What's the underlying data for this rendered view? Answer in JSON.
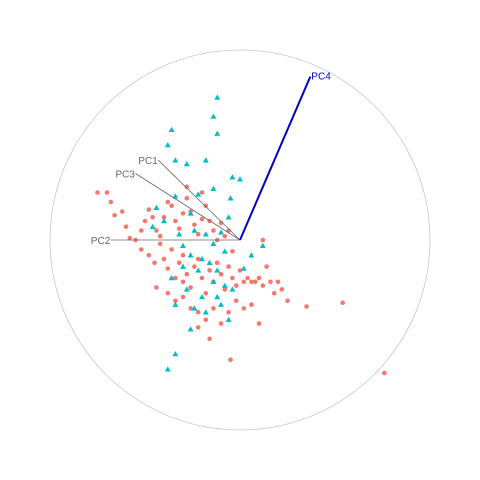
{
  "chart_data": {
    "type": "scatter",
    "title": "",
    "xlabel": "",
    "ylabel": "",
    "grid": false,
    "legend": "none",
    "xlim": [
      -1,
      1
    ],
    "ylim": [
      -1,
      1
    ],
    "unit_circle": true,
    "axes": [
      {
        "name": "PC1",
        "x": -0.43,
        "y": 0.42,
        "color": "#666666",
        "highlight": false
      },
      {
        "name": "PC2",
        "x": -0.68,
        "y": 0.0,
        "color": "#666666",
        "highlight": false
      },
      {
        "name": "PC3",
        "x": -0.55,
        "y": 0.35,
        "color": "#666666",
        "highlight": false
      },
      {
        "name": "PC4",
        "x": 0.37,
        "y": 0.86,
        "color": "#0000cc",
        "highlight": true
      }
    ],
    "series": [
      {
        "color": "#F8766D",
        "marker": "circle",
        "points": [
          [
            -0.75,
            0.25
          ],
          [
            -0.7,
            0.25
          ],
          [
            -0.68,
            0.2
          ],
          [
            -0.66,
            0.13
          ],
          [
            -0.62,
            0.15
          ],
          [
            -0.6,
            0.07
          ],
          [
            -0.58,
            0.01
          ],
          [
            -0.55,
            0.0
          ],
          [
            -0.52,
            0.05
          ],
          [
            -0.5,
            0.1
          ],
          [
            -0.48,
            0.16
          ],
          [
            -0.46,
            0.12
          ],
          [
            -0.44,
            0.05
          ],
          [
            -0.42,
            0.02
          ],
          [
            -0.4,
            0.12
          ],
          [
            -0.38,
            0.2
          ],
          [
            -0.36,
            0.18
          ],
          [
            -0.34,
            0.1
          ],
          [
            -0.32,
            0.06
          ],
          [
            -0.3,
            0.14
          ],
          [
            -0.28,
            0.22
          ],
          [
            -0.26,
            0.15
          ],
          [
            -0.24,
            0.08
          ],
          [
            -0.22,
            0.03
          ],
          [
            -0.2,
            0.11
          ],
          [
            -0.18,
            0.18
          ],
          [
            -0.16,
            0.1
          ],
          [
            -0.14,
            0.05
          ],
          [
            -0.12,
            0.0
          ],
          [
            -0.1,
            0.09
          ],
          [
            -0.52,
            -0.05
          ],
          [
            -0.48,
            -0.08
          ],
          [
            -0.45,
            -0.12
          ],
          [
            -0.42,
            -0.02
          ],
          [
            -0.4,
            -0.1
          ],
          [
            -0.38,
            -0.15
          ],
          [
            -0.36,
            -0.05
          ],
          [
            -0.34,
            -0.2
          ],
          [
            -0.32,
            -0.12
          ],
          [
            -0.3,
            -0.08
          ],
          [
            -0.28,
            -0.18
          ],
          [
            -0.26,
            -0.25
          ],
          [
            -0.24,
            -0.14
          ],
          [
            -0.22,
            -0.1
          ],
          [
            -0.2,
            -0.2
          ],
          [
            -0.18,
            -0.28
          ],
          [
            -0.16,
            -0.16
          ],
          [
            -0.14,
            -0.22
          ],
          [
            -0.12,
            -0.12
          ],
          [
            -0.1,
            -0.18
          ],
          [
            -0.08,
            -0.26
          ],
          [
            -0.06,
            -0.14
          ],
          [
            -0.04,
            -0.2
          ],
          [
            -0.02,
            -0.24
          ],
          [
            0.0,
            -0.16
          ],
          [
            0.02,
            -0.22
          ],
          [
            0.04,
            -0.2
          ],
          [
            0.06,
            -0.22
          ],
          [
            0.08,
            -0.22
          ],
          [
            0.1,
            -0.2
          ],
          [
            0.12,
            -0.24
          ],
          [
            0.14,
            -0.14
          ],
          [
            0.16,
            -0.22
          ],
          [
            0.18,
            -0.28
          ],
          [
            0.2,
            -0.22
          ],
          [
            0.22,
            -0.26
          ],
          [
            0.25,
            -0.32
          ],
          [
            0.35,
            -0.35
          ],
          [
            0.54,
            -0.33
          ],
          [
            0.76,
            -0.7
          ],
          [
            -0.38,
            -0.28
          ],
          [
            -0.34,
            -0.32
          ],
          [
            -0.3,
            -0.3
          ],
          [
            -0.26,
            -0.36
          ],
          [
            -0.22,
            -0.38
          ],
          [
            -0.18,
            -0.42
          ],
          [
            -0.14,
            -0.36
          ],
          [
            -0.1,
            -0.44
          ],
          [
            -0.06,
            -0.38
          ],
          [
            -0.02,
            -0.32
          ],
          [
            0.02,
            -0.36
          ],
          [
            0.06,
            -0.34
          ],
          [
            0.1,
            -0.44
          ],
          [
            -0.22,
            -0.46
          ],
          [
            -0.16,
            -0.52
          ],
          [
            -0.05,
            -0.63
          ],
          [
            -0.3,
            -0.22
          ],
          [
            -0.44,
            -0.25
          ],
          [
            -0.28,
            0.28
          ],
          [
            -0.2,
            0.25
          ],
          [
            0.12,
            0.0
          ],
          [
            -0.06,
            0.05
          ],
          [
            -0.04,
            -0.06
          ],
          [
            -0.08,
            0.02
          ]
        ]
      },
      {
        "color": "#00BFC4",
        "marker": "triangle",
        "points": [
          [
            -0.12,
            0.75
          ],
          [
            -0.14,
            0.65
          ],
          [
            -0.12,
            0.56
          ],
          [
            -0.36,
            0.58
          ],
          [
            -0.38,
            0.5
          ],
          [
            -0.18,
            0.42
          ],
          [
            -0.34,
            0.42
          ],
          [
            -0.28,
            0.4
          ],
          [
            -0.04,
            0.33
          ],
          [
            0.0,
            0.32
          ],
          [
            -0.05,
            0.22
          ],
          [
            -0.14,
            0.27
          ],
          [
            -0.22,
            0.24
          ],
          [
            -0.34,
            0.23
          ],
          [
            -0.26,
            0.14
          ],
          [
            -0.4,
            0.1
          ],
          [
            -0.44,
            0.17
          ],
          [
            -0.46,
            0.07
          ],
          [
            -0.32,
            0.03
          ],
          [
            -0.3,
            -0.03
          ],
          [
            -0.24,
            0.05
          ],
          [
            -0.18,
            0.03
          ],
          [
            -0.14,
            -0.02
          ],
          [
            -0.1,
            0.04
          ],
          [
            -0.08,
            -0.06
          ],
          [
            -0.06,
            0.12
          ],
          [
            -0.26,
            -0.08
          ],
          [
            -0.2,
            -0.1
          ],
          [
            -0.16,
            -0.12
          ],
          [
            -0.12,
            -0.16
          ],
          [
            -0.3,
            -0.14
          ],
          [
            -0.22,
            -0.16
          ],
          [
            -0.36,
            -0.2
          ],
          [
            -0.28,
            -0.26
          ],
          [
            -0.2,
            -0.3
          ],
          [
            -0.12,
            -0.3
          ],
          [
            -0.08,
            -0.24
          ],
          [
            -0.04,
            -0.26
          ],
          [
            -0.34,
            -0.34
          ],
          [
            -0.24,
            -0.36
          ],
          [
            -0.18,
            -0.38
          ],
          [
            -0.1,
            -0.34
          ],
          [
            -0.06,
            -0.42
          ],
          [
            -0.26,
            -0.47
          ],
          [
            -0.34,
            -0.6
          ],
          [
            -0.38,
            -0.68
          ],
          [
            0.12,
            -0.03
          ],
          [
            0.02,
            -0.15
          ],
          [
            0.06,
            -0.08
          ],
          [
            -0.14,
            -0.22
          ]
        ]
      }
    ]
  }
}
